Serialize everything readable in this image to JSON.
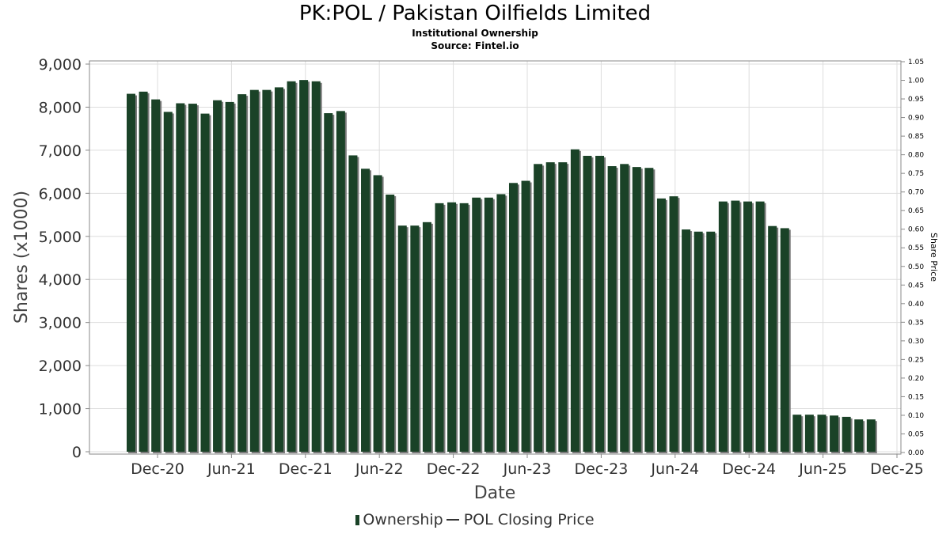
{
  "header": {
    "title": "PK:POL / Pakistan Oilfields Limited",
    "subtitle": "Institutional Ownership",
    "source": "Source: Fintel.io"
  },
  "legend": {
    "ownership": "Ownership",
    "price": "POL Closing Price"
  },
  "colors": {
    "bar": "#1a4227",
    "bar_shadow": "#7a7a7a",
    "grid": "#dddddd"
  },
  "chart_data": {
    "type": "bar",
    "xlabel": "Date",
    "ylabel": "Shares (x1000)",
    "y2label": "Share Price",
    "ylim": [
      0,
      9000
    ],
    "y2lim": [
      0,
      1.05
    ],
    "yticks": [
      "0",
      "1,000",
      "2,000",
      "3,000",
      "4,000",
      "5,000",
      "6,000",
      "7,000",
      "8,000",
      "9,000"
    ],
    "y2ticks": [
      "0.00",
      "0.05",
      "0.10",
      "0.15",
      "0.20",
      "0.25",
      "0.30",
      "0.35",
      "0.40",
      "0.45",
      "0.50",
      "0.55",
      "0.60",
      "0.65",
      "0.70",
      "0.75",
      "0.80",
      "0.85",
      "0.90",
      "0.95",
      "1.00",
      "1.05"
    ],
    "xticks": [
      "Dec-20",
      "Jun-21",
      "Dec-21",
      "Jun-22",
      "Dec-22",
      "Jun-23",
      "Dec-23",
      "Jun-24",
      "Dec-24",
      "Jun-25",
      "Dec-25"
    ],
    "grid": true,
    "legend_position": "bottom",
    "series": [
      {
        "name": "Ownership",
        "values": [
          8310,
          8360,
          8180,
          7890,
          8090,
          8080,
          7850,
          8160,
          8120,
          8300,
          8400,
          8400,
          8460,
          8600,
          8630,
          8600,
          7860,
          7910,
          6880,
          6570,
          6420,
          5970,
          5250,
          5250,
          5330,
          5770,
          5790,
          5770,
          5900,
          5900,
          5980,
          6240,
          6290,
          6680,
          6720,
          6720,
          7020,
          6870,
          6870,
          6630,
          6680,
          6610,
          6590,
          5880,
          5930,
          5160,
          5110,
          5110,
          5810,
          5830,
          5810,
          5810,
          5240,
          5190,
          860,
          860,
          860,
          840,
          810,
          750,
          750
        ]
      }
    ]
  }
}
